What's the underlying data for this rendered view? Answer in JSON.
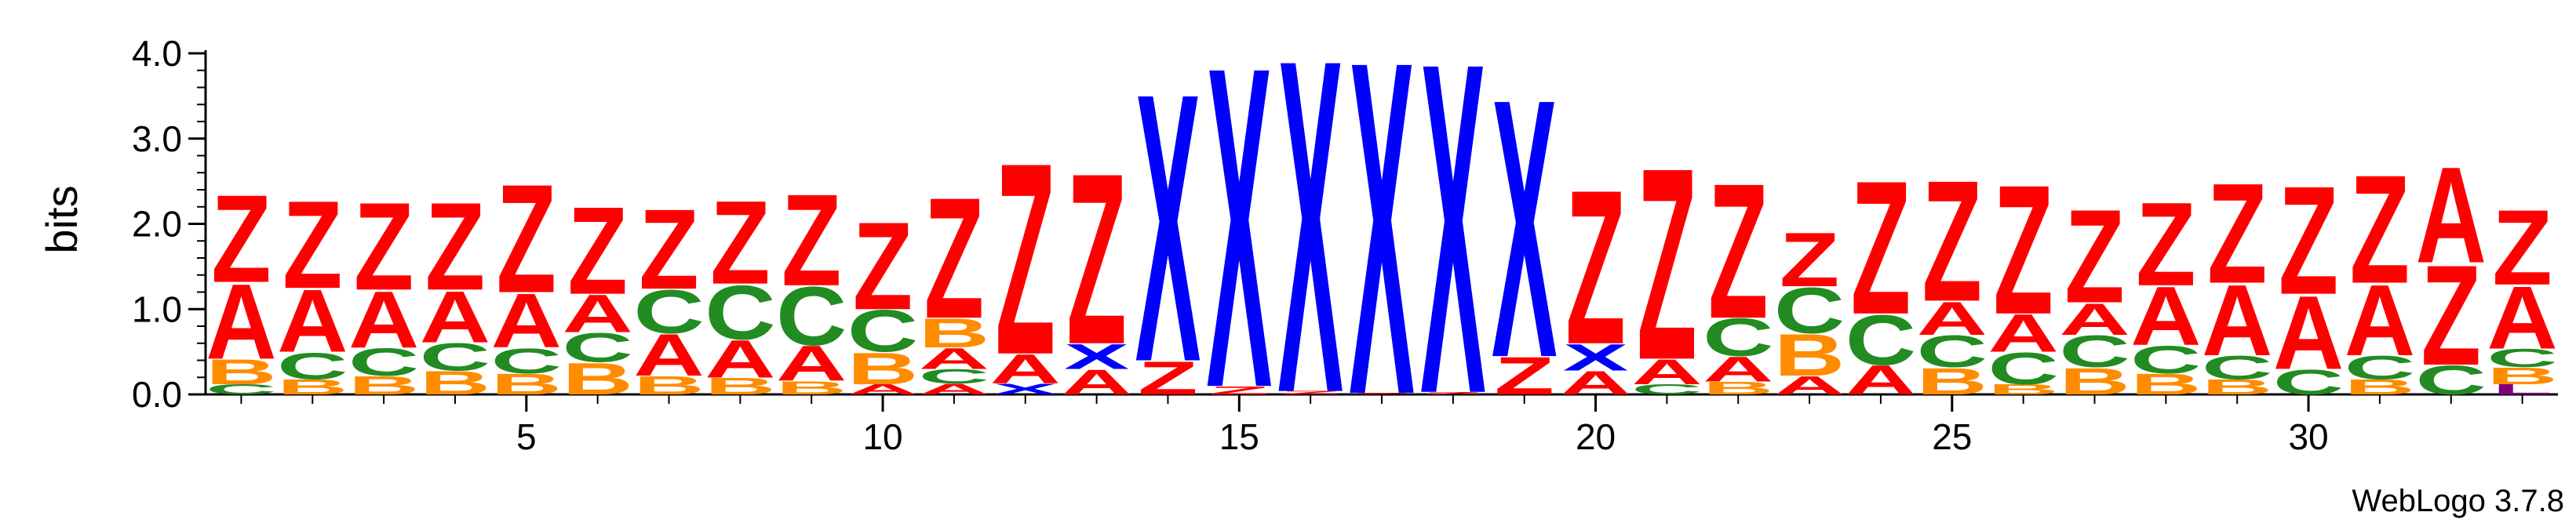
{
  "chart_data": {
    "type": "sequence-logo",
    "title": "",
    "xlabel": "",
    "ylabel": "bits",
    "ylim": [
      0,
      4
    ],
    "xlim": [
      0.5,
      33.5
    ],
    "yticks": [
      "0.0",
      "1.0",
      "2.0",
      "3.0",
      "4.0"
    ],
    "xticks": [
      "5",
      "10",
      "15",
      "20",
      "25",
      "30"
    ],
    "credit": "WebLogo 3.7.8",
    "colors": {
      "Z": "#ff0000",
      "X": "#0000ff",
      "A": "#ff0000",
      "B": "#ff8c00",
      "C": "#228b22",
      "L": "#800080"
    },
    "positions": [
      {
        "pos": 1,
        "stack": [
          [
            "C",
            0.12
          ],
          [
            "B",
            0.3
          ],
          [
            "A",
            0.9
          ],
          [
            "Z",
            1.05
          ]
        ]
      },
      {
        "pos": 2,
        "stack": [
          [
            "B",
            0.18
          ],
          [
            "C",
            0.32
          ],
          [
            "A",
            0.75
          ],
          [
            "Z",
            1.05
          ]
        ]
      },
      {
        "pos": 3,
        "stack": [
          [
            "B",
            0.22
          ],
          [
            "C",
            0.33
          ],
          [
            "A",
            0.68
          ],
          [
            "Z",
            1.05
          ]
        ]
      },
      {
        "pos": 4,
        "stack": [
          [
            "B",
            0.28
          ],
          [
            "C",
            0.33
          ],
          [
            "A",
            0.62
          ],
          [
            "Z",
            1.05
          ]
        ]
      },
      {
        "pos": 5,
        "stack": [
          [
            "B",
            0.25
          ],
          [
            "C",
            0.3
          ],
          [
            "A",
            0.65
          ],
          [
            "Z",
            1.3
          ]
        ]
      },
      {
        "pos": 6,
        "stack": [
          [
            "B",
            0.38
          ],
          [
            "C",
            0.35
          ],
          [
            "A",
            0.45
          ],
          [
            "Z",
            1.05
          ]
        ]
      },
      {
        "pos": 7,
        "stack": [
          [
            "B",
            0.22
          ],
          [
            "A",
            0.5
          ],
          [
            "C",
            0.52
          ],
          [
            "Z",
            0.96
          ]
        ]
      },
      {
        "pos": 8,
        "stack": [
          [
            "B",
            0.2
          ],
          [
            "A",
            0.45
          ],
          [
            "C",
            0.65
          ],
          [
            "Z",
            1.0
          ]
        ]
      },
      {
        "pos": 9,
        "stack": [
          [
            "B",
            0.16
          ],
          [
            "A",
            0.42
          ],
          [
            "C",
            0.7
          ],
          [
            "Z",
            1.1
          ]
        ]
      },
      {
        "pos": 10,
        "stack": [
          [
            "A",
            0.12
          ],
          [
            "B",
            0.38
          ],
          [
            "C",
            0.5
          ],
          [
            "Z",
            1.05
          ]
        ]
      },
      {
        "pos": 11,
        "stack": [
          [
            "A",
            0.13
          ],
          [
            "C",
            0.17
          ],
          [
            "A",
            0.25
          ],
          [
            "B",
            0.35
          ],
          [
            "Z",
            1.45
          ]
        ]
      },
      {
        "pos": 12,
        "stack": [
          [
            "X",
            0.13
          ],
          [
            "A",
            0.35
          ],
          [
            "Z",
            2.3
          ]
        ]
      },
      {
        "pos": 13,
        "stack": [
          [
            "A",
            0.3
          ],
          [
            "X",
            0.3
          ],
          [
            "Z",
            2.05
          ]
        ]
      },
      {
        "pos": 14,
        "stack": [
          [
            "Z",
            0.4
          ],
          [
            "X",
            3.22
          ]
        ]
      },
      {
        "pos": 15,
        "stack": [
          [
            "Z",
            0.1
          ],
          [
            "X",
            3.85
          ]
        ]
      },
      {
        "pos": 16,
        "stack": [
          [
            "Z",
            0.04
          ],
          [
            "X",
            4.0
          ]
        ]
      },
      {
        "pos": 17,
        "stack": [
          [
            "Z",
            0.02
          ],
          [
            "X",
            4.0
          ]
        ]
      },
      {
        "pos": 18,
        "stack": [
          [
            "Z",
            0.03
          ],
          [
            "X",
            3.97
          ]
        ]
      },
      {
        "pos": 19,
        "stack": [
          [
            "Z",
            0.45
          ],
          [
            "X",
            3.1
          ]
        ]
      },
      {
        "pos": 20,
        "stack": [
          [
            "A",
            0.28
          ],
          [
            "X",
            0.32
          ],
          [
            "Z",
            1.85
          ]
        ]
      },
      {
        "pos": 21,
        "stack": [
          [
            "C",
            0.12
          ],
          [
            "A",
            0.3
          ],
          [
            "Z",
            2.3
          ]
        ]
      },
      {
        "pos": 22,
        "stack": [
          [
            "B",
            0.15
          ],
          [
            "A",
            0.3
          ],
          [
            "C",
            0.45
          ],
          [
            "Z",
            1.62
          ]
        ]
      },
      {
        "pos": 23,
        "stack": [
          [
            "A",
            0.22
          ],
          [
            "B",
            0.5
          ],
          [
            "C",
            0.55
          ],
          [
            "Z",
            0.65
          ]
        ]
      },
      {
        "pos": 24,
        "stack": [
          [
            "A",
            0.35
          ],
          [
            "C",
            0.6
          ],
          [
            "Z",
            1.6
          ]
        ]
      },
      {
        "pos": 25,
        "stack": [
          [
            "B",
            0.32
          ],
          [
            "C",
            0.38
          ],
          [
            "A",
            0.4
          ],
          [
            "Z",
            1.45
          ]
        ]
      },
      {
        "pos": 26,
        "stack": [
          [
            "B",
            0.12
          ],
          [
            "C",
            0.38
          ],
          [
            "A",
            0.45
          ],
          [
            "Z",
            1.55
          ]
        ]
      },
      {
        "pos": 27,
        "stack": [
          [
            "B",
            0.32
          ],
          [
            "C",
            0.38
          ],
          [
            "A",
            0.38
          ],
          [
            "Z",
            1.12
          ]
        ]
      },
      {
        "pos": 28,
        "stack": [
          [
            "B",
            0.25
          ],
          [
            "C",
            0.33
          ],
          [
            "A",
            0.7
          ],
          [
            "Z",
            1.0
          ]
        ]
      },
      {
        "pos": 29,
        "stack": [
          [
            "B",
            0.18
          ],
          [
            "C",
            0.28
          ],
          [
            "A",
            0.85
          ],
          [
            "Z",
            1.2
          ]
        ]
      },
      {
        "pos": 30,
        "stack": [
          [
            "C",
            0.3
          ],
          [
            "A",
            0.88
          ],
          [
            "Z",
            1.3
          ]
        ]
      },
      {
        "pos": 31,
        "stack": [
          [
            "B",
            0.18
          ],
          [
            "C",
            0.28
          ],
          [
            "A",
            0.85
          ],
          [
            "Z",
            1.3
          ]
        ]
      },
      {
        "pos": 32,
        "stack": [
          [
            "C",
            0.35
          ],
          [
            "Z",
            1.2
          ],
          [
            "A",
            1.15
          ]
        ]
      },
      {
        "pos": 33,
        "stack": [
          [
            "L",
            0.12
          ],
          [
            "B",
            0.2
          ],
          [
            "C",
            0.22
          ],
          [
            "A",
            0.75
          ],
          [
            "Z",
            0.9
          ]
        ]
      }
    ]
  }
}
